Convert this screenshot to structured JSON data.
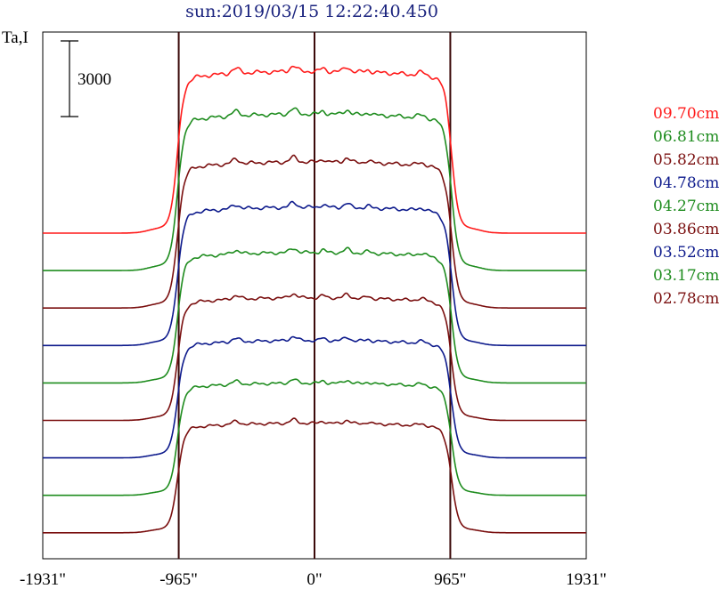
{
  "title": "sun:2019/03/15 12:22:40.450",
  "chart_data": {
    "type": "line",
    "ylabel": "Ta,I",
    "xlabel": "",
    "scale_bar_value": "3000",
    "xlim": [
      -1931,
      1931
    ],
    "xticks": [
      {
        "value": -1931,
        "label": "-1931\""
      },
      {
        "value": -965,
        "label": "-965\""
      },
      {
        "value": 0,
        "label": "0\""
      },
      {
        "value": 965,
        "label": "965\""
      },
      {
        "value": 1931,
        "label": "1931\""
      }
    ],
    "vertical_lines": [
      -965,
      0,
      965
    ],
    "limb_arcsec": 975,
    "series_order_top_to_bottom": [
      {
        "name": "09.70cm",
        "color": "#ff1a1a",
        "disk_level": 6200
      },
      {
        "name": "06.81cm",
        "color": "#1e8c1e",
        "disk_level": 6000
      },
      {
        "name": "05.82cm",
        "color": "#7a0f0f",
        "disk_level": 5600
      },
      {
        "name": "04.78cm",
        "color": "#0d1a8c",
        "disk_level": 5300
      },
      {
        "name": "04.27cm",
        "color": "#1e8c1e",
        "disk_level": 5000
      },
      {
        "name": "03.86cm",
        "color": "#7a0f0f",
        "disk_level": 4700
      },
      {
        "name": "03.52cm",
        "color": "#0d1a8c",
        "disk_level": 4500
      },
      {
        "name": "03.17cm",
        "color": "#1e8c1e",
        "disk_level": 4300
      },
      {
        "name": "02.78cm",
        "color": "#7a0f0f",
        "disk_level": 4200
      }
    ]
  }
}
